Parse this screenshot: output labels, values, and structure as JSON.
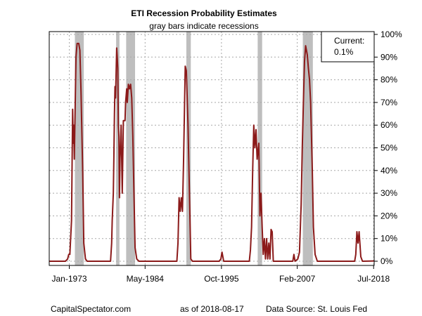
{
  "chart_data": {
    "type": "line",
    "title": "ETI Recession Probability Estimates",
    "subtitle": "gray bars indicate recessions",
    "x_ticks": [
      "Jan-1973",
      "May-1984",
      "Oct-1995",
      "Feb-2007",
      "Jul-2018"
    ],
    "x_range": [
      "1970-01",
      "2018-08"
    ],
    "y_ticks": [
      "0%",
      "10%",
      "20%",
      "30%",
      "40%",
      "50%",
      "60%",
      "70%",
      "80%",
      "90%",
      "100%"
    ],
    "ylim": [
      0,
      100
    ],
    "grid": true,
    "legend": {
      "position": "top-right",
      "label": "Current:",
      "value": "0.1%"
    },
    "recessions": [
      [
        "1973-11",
        "1975-03"
      ],
      [
        "1980-01",
        "1980-07"
      ],
      [
        "1981-07",
        "1982-11"
      ],
      [
        "1990-07",
        "1991-03"
      ],
      [
        "2001-03",
        "2001-11"
      ],
      [
        "2007-12",
        "2009-06"
      ]
    ],
    "series": [
      {
        "color": "#8b1a1a",
        "points": [
          [
            "1970-01",
            0
          ],
          [
            "1972-06",
            0
          ],
          [
            "1972-10",
            1
          ],
          [
            "1972-12",
            3
          ],
          [
            "1973-02",
            3
          ],
          [
            "1973-03",
            8
          ],
          [
            "1973-05",
            18
          ],
          [
            "1973-07",
            67
          ],
          [
            "1973-08",
            52
          ],
          [
            "1973-09",
            60
          ],
          [
            "1973-10",
            45
          ],
          [
            "1973-11",
            60
          ],
          [
            "1974-01",
            90
          ],
          [
            "1974-03",
            96
          ],
          [
            "1974-06",
            96
          ],
          [
            "1974-08",
            93
          ],
          [
            "1974-10",
            75
          ],
          [
            "1975-01",
            40
          ],
          [
            "1975-03",
            8
          ],
          [
            "1975-06",
            1
          ],
          [
            "1975-09",
            0
          ],
          [
            "1979-03",
            0
          ],
          [
            "1979-05",
            8
          ],
          [
            "1979-06",
            18
          ],
          [
            "1979-08",
            30
          ],
          [
            "1979-09",
            46
          ],
          [
            "1979-10",
            65
          ],
          [
            "1979-11",
            77
          ],
          [
            "1979-12",
            72
          ],
          [
            "1980-02",
            94
          ],
          [
            "1980-03",
            90
          ],
          [
            "1980-04",
            85
          ],
          [
            "1980-05",
            60
          ],
          [
            "1980-06",
            55
          ],
          [
            "1980-07",
            28
          ],
          [
            "1980-08",
            45
          ],
          [
            "1980-10",
            60
          ],
          [
            "1980-12",
            30
          ],
          [
            "1981-02",
            62
          ],
          [
            "1981-05",
            62
          ],
          [
            "1981-06",
            70
          ],
          [
            "1981-08",
            76
          ],
          [
            "1981-09",
            70
          ],
          [
            "1981-11",
            78
          ],
          [
            "1982-01",
            76
          ],
          [
            "1982-03",
            78
          ],
          [
            "1982-05",
            72
          ],
          [
            "1982-07",
            55
          ],
          [
            "1982-09",
            30
          ],
          [
            "1982-11",
            6
          ],
          [
            "1983-02",
            1
          ],
          [
            "1983-06",
            0
          ],
          [
            "1988-10",
            0
          ],
          [
            "1989-02",
            0
          ],
          [
            "1989-04",
            8
          ],
          [
            "1989-06",
            28
          ],
          [
            "1989-08",
            22
          ],
          [
            "1989-10",
            28
          ],
          [
            "1989-12",
            22
          ],
          [
            "1990-02",
            44
          ],
          [
            "1990-04",
            72
          ],
          [
            "1990-05",
            86
          ],
          [
            "1990-07",
            84
          ],
          [
            "1990-10",
            60
          ],
          [
            "1991-01",
            25
          ],
          [
            "1991-03",
            1
          ],
          [
            "1991-06",
            0
          ],
          [
            "1995-06",
            0
          ],
          [
            "1995-09",
            1
          ],
          [
            "1995-11",
            4
          ],
          [
            "1996-02",
            0
          ],
          [
            "1999-12",
            0
          ],
          [
            "2000-02",
            5
          ],
          [
            "2000-04",
            15
          ],
          [
            "2000-06",
            40
          ],
          [
            "2000-08",
            60
          ],
          [
            "2000-10",
            50
          ],
          [
            "2000-12",
            58
          ],
          [
            "2001-02",
            45
          ],
          [
            "2001-05",
            52
          ],
          [
            "2001-07",
            20
          ],
          [
            "2001-09",
            30
          ],
          [
            "2001-11",
            15
          ],
          [
            "2002-01",
            3
          ],
          [
            "2002-03",
            10
          ],
          [
            "2002-05",
            1
          ],
          [
            "2002-07",
            10
          ],
          [
            "2002-09",
            1
          ],
          [
            "2002-11",
            8
          ],
          [
            "2003-01",
            1
          ],
          [
            "2003-03",
            14
          ],
          [
            "2003-05",
            13
          ],
          [
            "2003-07",
            0
          ],
          [
            "2006-06",
            0
          ],
          [
            "2006-08",
            3
          ],
          [
            "2006-10",
            0
          ],
          [
            "2007-03",
            1
          ],
          [
            "2007-06",
            4
          ],
          [
            "2007-09",
            25
          ],
          [
            "2007-11",
            50
          ],
          [
            "2008-01",
            70
          ],
          [
            "2008-03",
            88
          ],
          [
            "2008-05",
            95
          ],
          [
            "2008-08",
            91
          ],
          [
            "2008-10",
            85
          ],
          [
            "2008-12",
            80
          ],
          [
            "2009-02",
            70
          ],
          [
            "2009-05",
            40
          ],
          [
            "2009-07",
            15
          ],
          [
            "2009-10",
            3
          ],
          [
            "2010-02",
            0
          ],
          [
            "2015-09",
            0
          ],
          [
            "2015-11",
            3
          ],
          [
            "2016-01",
            13
          ],
          [
            "2016-03",
            8
          ],
          [
            "2016-05",
            13
          ],
          [
            "2016-08",
            2
          ],
          [
            "2016-11",
            0
          ],
          [
            "2018-08",
            0.1
          ]
        ]
      }
    ]
  },
  "footer": {
    "left": "CapitalSpectator.com",
    "center": "as of 2018-08-17",
    "right": "Data Source: St. Louis Fed"
  }
}
